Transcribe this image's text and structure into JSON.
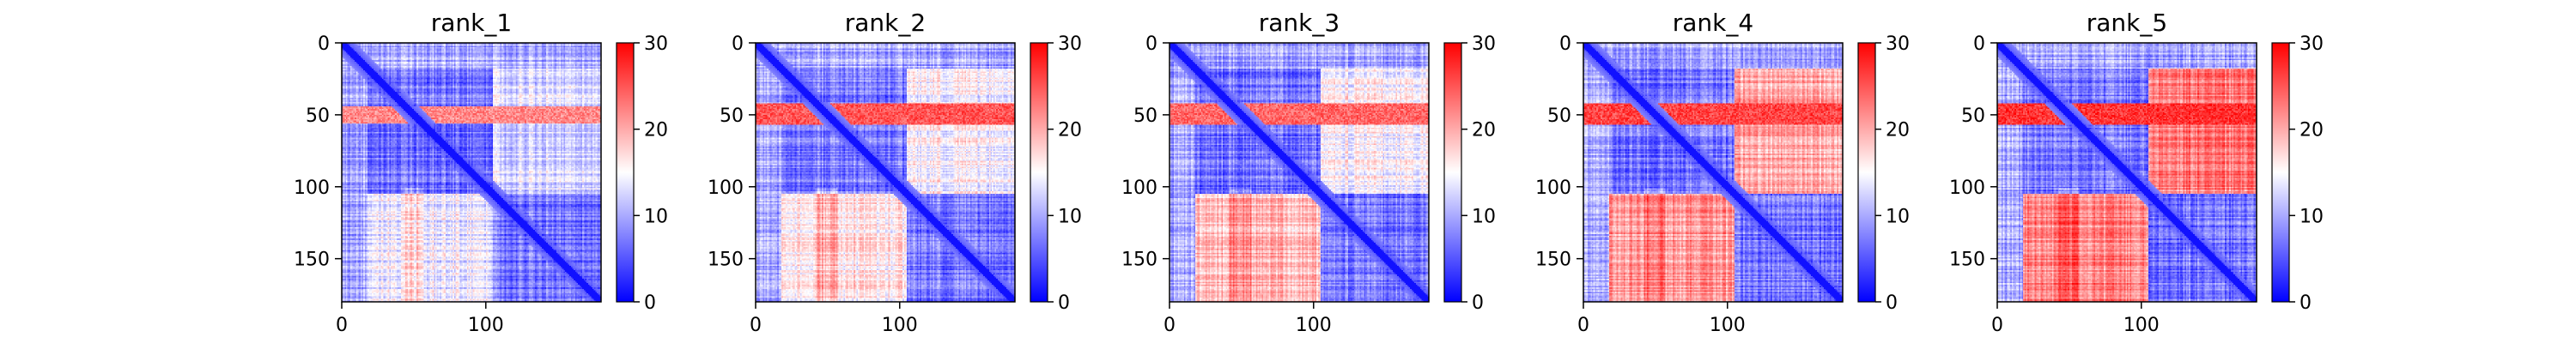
{
  "chart_data": [
    {
      "type": "heatmap",
      "title": "rank_1",
      "xlabel": "",
      "ylabel": "",
      "n": 180,
      "x_ticks": [
        0,
        100
      ],
      "y_ticks": [
        0,
        50,
        100,
        150
      ],
      "colorbar": {
        "min": 0,
        "max": 30,
        "ticks": [
          0,
          10,
          20,
          30
        ],
        "colors": [
          "#0000ff",
          "#ffffff",
          "#ff0000"
        ]
      },
      "high_band": {
        "rows": [
          44,
          55
        ],
        "cols": [
          0,
          180
        ],
        "level": 22
      },
      "block_levels": {
        "within": 7,
        "upper_right": 13,
        "lower_left": 14
      }
    },
    {
      "type": "heatmap",
      "title": "rank_2",
      "xlabel": "",
      "ylabel": "",
      "n": 180,
      "x_ticks": [
        0,
        100
      ],
      "y_ticks": [
        0,
        50,
        100,
        150
      ],
      "colorbar": {
        "min": 0,
        "max": 30,
        "ticks": [
          0,
          10,
          20,
          30
        ],
        "colors": [
          "#0000ff",
          "#ffffff",
          "#ff0000"
        ]
      },
      "high_band": {
        "rows": [
          42,
          56
        ],
        "cols": [
          0,
          180
        ],
        "level": 25
      },
      "block_levels": {
        "within": 7,
        "upper_right": 15,
        "lower_left": 16
      }
    },
    {
      "type": "heatmap",
      "title": "rank_3",
      "xlabel": "",
      "ylabel": "",
      "n": 180,
      "x_ticks": [
        0,
        100
      ],
      "y_ticks": [
        0,
        50,
        100,
        150
      ],
      "colorbar": {
        "min": 0,
        "max": 30,
        "ticks": [
          0,
          10,
          20,
          30
        ],
        "colors": [
          "#0000ff",
          "#ffffff",
          "#ff0000"
        ]
      },
      "high_band": {
        "rows": [
          42,
          56
        ],
        "cols": [
          0,
          180
        ],
        "level": 24
      },
      "block_levels": {
        "within": 7,
        "upper_right": 15,
        "lower_left": 19
      }
    },
    {
      "type": "heatmap",
      "title": "rank_4",
      "xlabel": "",
      "ylabel": "",
      "n": 180,
      "x_ticks": [
        0,
        100
      ],
      "y_ticks": [
        0,
        50,
        100,
        150
      ],
      "colorbar": {
        "min": 0,
        "max": 30,
        "ticks": [
          0,
          10,
          20,
          30
        ],
        "colors": [
          "#0000ff",
          "#ffffff",
          "#ff0000"
        ]
      },
      "high_band": {
        "rows": [
          42,
          56
        ],
        "cols": [
          0,
          180
        ],
        "level": 26
      },
      "block_levels": {
        "within": 7,
        "upper_right": 20,
        "lower_left": 21
      }
    },
    {
      "type": "heatmap",
      "title": "rank_5",
      "xlabel": "",
      "ylabel": "",
      "n": 180,
      "x_ticks": [
        0,
        100
      ],
      "y_ticks": [
        0,
        50,
        100,
        150
      ],
      "colorbar": {
        "min": 0,
        "max": 30,
        "ticks": [
          0,
          10,
          20,
          30
        ],
        "colors": [
          "#0000ff",
          "#ffffff",
          "#ff0000"
        ]
      },
      "high_band": {
        "rows": [
          42,
          56
        ],
        "cols": [
          0,
          180
        ],
        "level": 27
      },
      "block_levels": {
        "within": 7,
        "upper_right": 23,
        "lower_left": 22
      }
    }
  ]
}
